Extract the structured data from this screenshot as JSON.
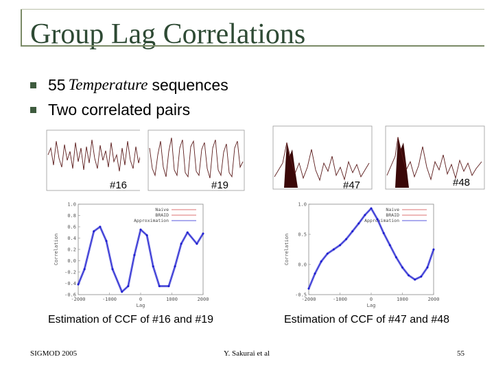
{
  "slide": {
    "title": "Group Lag Correlations",
    "bullets": [
      {
        "prefix": "55",
        "italic": "Temperature",
        "suffix": "sequences"
      },
      {
        "prefix": "Two correlated pairs",
        "italic": "",
        "suffix": ""
      }
    ],
    "footer": {
      "left": "SIGMOD 2005",
      "center": "Y. Sakurai et al",
      "right": "55"
    }
  },
  "sequences": [
    {
      "id": "#16",
      "color": "#8a2a2a"
    },
    {
      "id": "#19",
      "color": "#8a2a2a"
    },
    {
      "id": "#47",
      "color": "#4a0f0f"
    },
    {
      "id": "#48",
      "color": "#4a0f0f"
    }
  ],
  "chart_data": [
    {
      "type": "line",
      "title": "Estimation of CCF of #16 and #19",
      "xlabel": "Lag",
      "ylabel": "Correlation",
      "xticks": [
        "-2000",
        "-1000",
        "0",
        "1000",
        "2000"
      ],
      "yticks": [
        "1.0",
        "0.8",
        "0.6",
        "0.4",
        "0.2",
        "0.0",
        "-0.2",
        "-0.4",
        "-0.6"
      ],
      "ylim": [
        -0.6,
        1.0
      ],
      "legend": [
        "Naive",
        "BRAID",
        "Approximation"
      ],
      "legend_position": "top-right",
      "series": [
        {
          "name": "Approximation",
          "color": "#1f1fd0",
          "x": [
            -2000,
            -1800,
            -1500,
            -1300,
            -1100,
            -900,
            -600,
            -400,
            -200,
            0,
            200,
            400,
            600,
            900,
            1100,
            1300,
            1500,
            1800,
            2000
          ],
          "y": [
            -0.42,
            -0.15,
            0.52,
            0.6,
            0.35,
            -0.15,
            -0.55,
            -0.45,
            0.1,
            0.55,
            0.45,
            -0.1,
            -0.45,
            -0.45,
            -0.1,
            0.3,
            0.5,
            0.3,
            0.48
          ]
        }
      ]
    },
    {
      "type": "line",
      "title": "Estimation of CCF of #47 and #48",
      "xlabel": "Lag",
      "ylabel": "Correlation",
      "xticks": [
        "-2000",
        "-1000",
        "0",
        "1000",
        "2000"
      ],
      "yticks": [
        "1.0",
        "0.5",
        "0.0",
        "-0.5"
      ],
      "ylim": [
        -0.5,
        1.0
      ],
      "legend": [
        "Naive",
        "BRAID",
        "Approximation"
      ],
      "legend_position": "top-right",
      "series": [
        {
          "name": "Approximation",
          "color": "#1f1fd0",
          "x": [
            -2000,
            -1800,
            -1600,
            -1400,
            -1200,
            -1000,
            -800,
            -600,
            -400,
            -200,
            0,
            200,
            400,
            600,
            800,
            1000,
            1200,
            1400,
            1600,
            1800,
            2000
          ],
          "y": [
            -0.4,
            -0.15,
            0.05,
            0.18,
            0.25,
            0.32,
            0.42,
            0.55,
            0.68,
            0.82,
            0.93,
            0.75,
            0.52,
            0.32,
            0.12,
            -0.05,
            -0.18,
            -0.25,
            -0.2,
            -0.05,
            0.25
          ]
        }
      ]
    }
  ]
}
